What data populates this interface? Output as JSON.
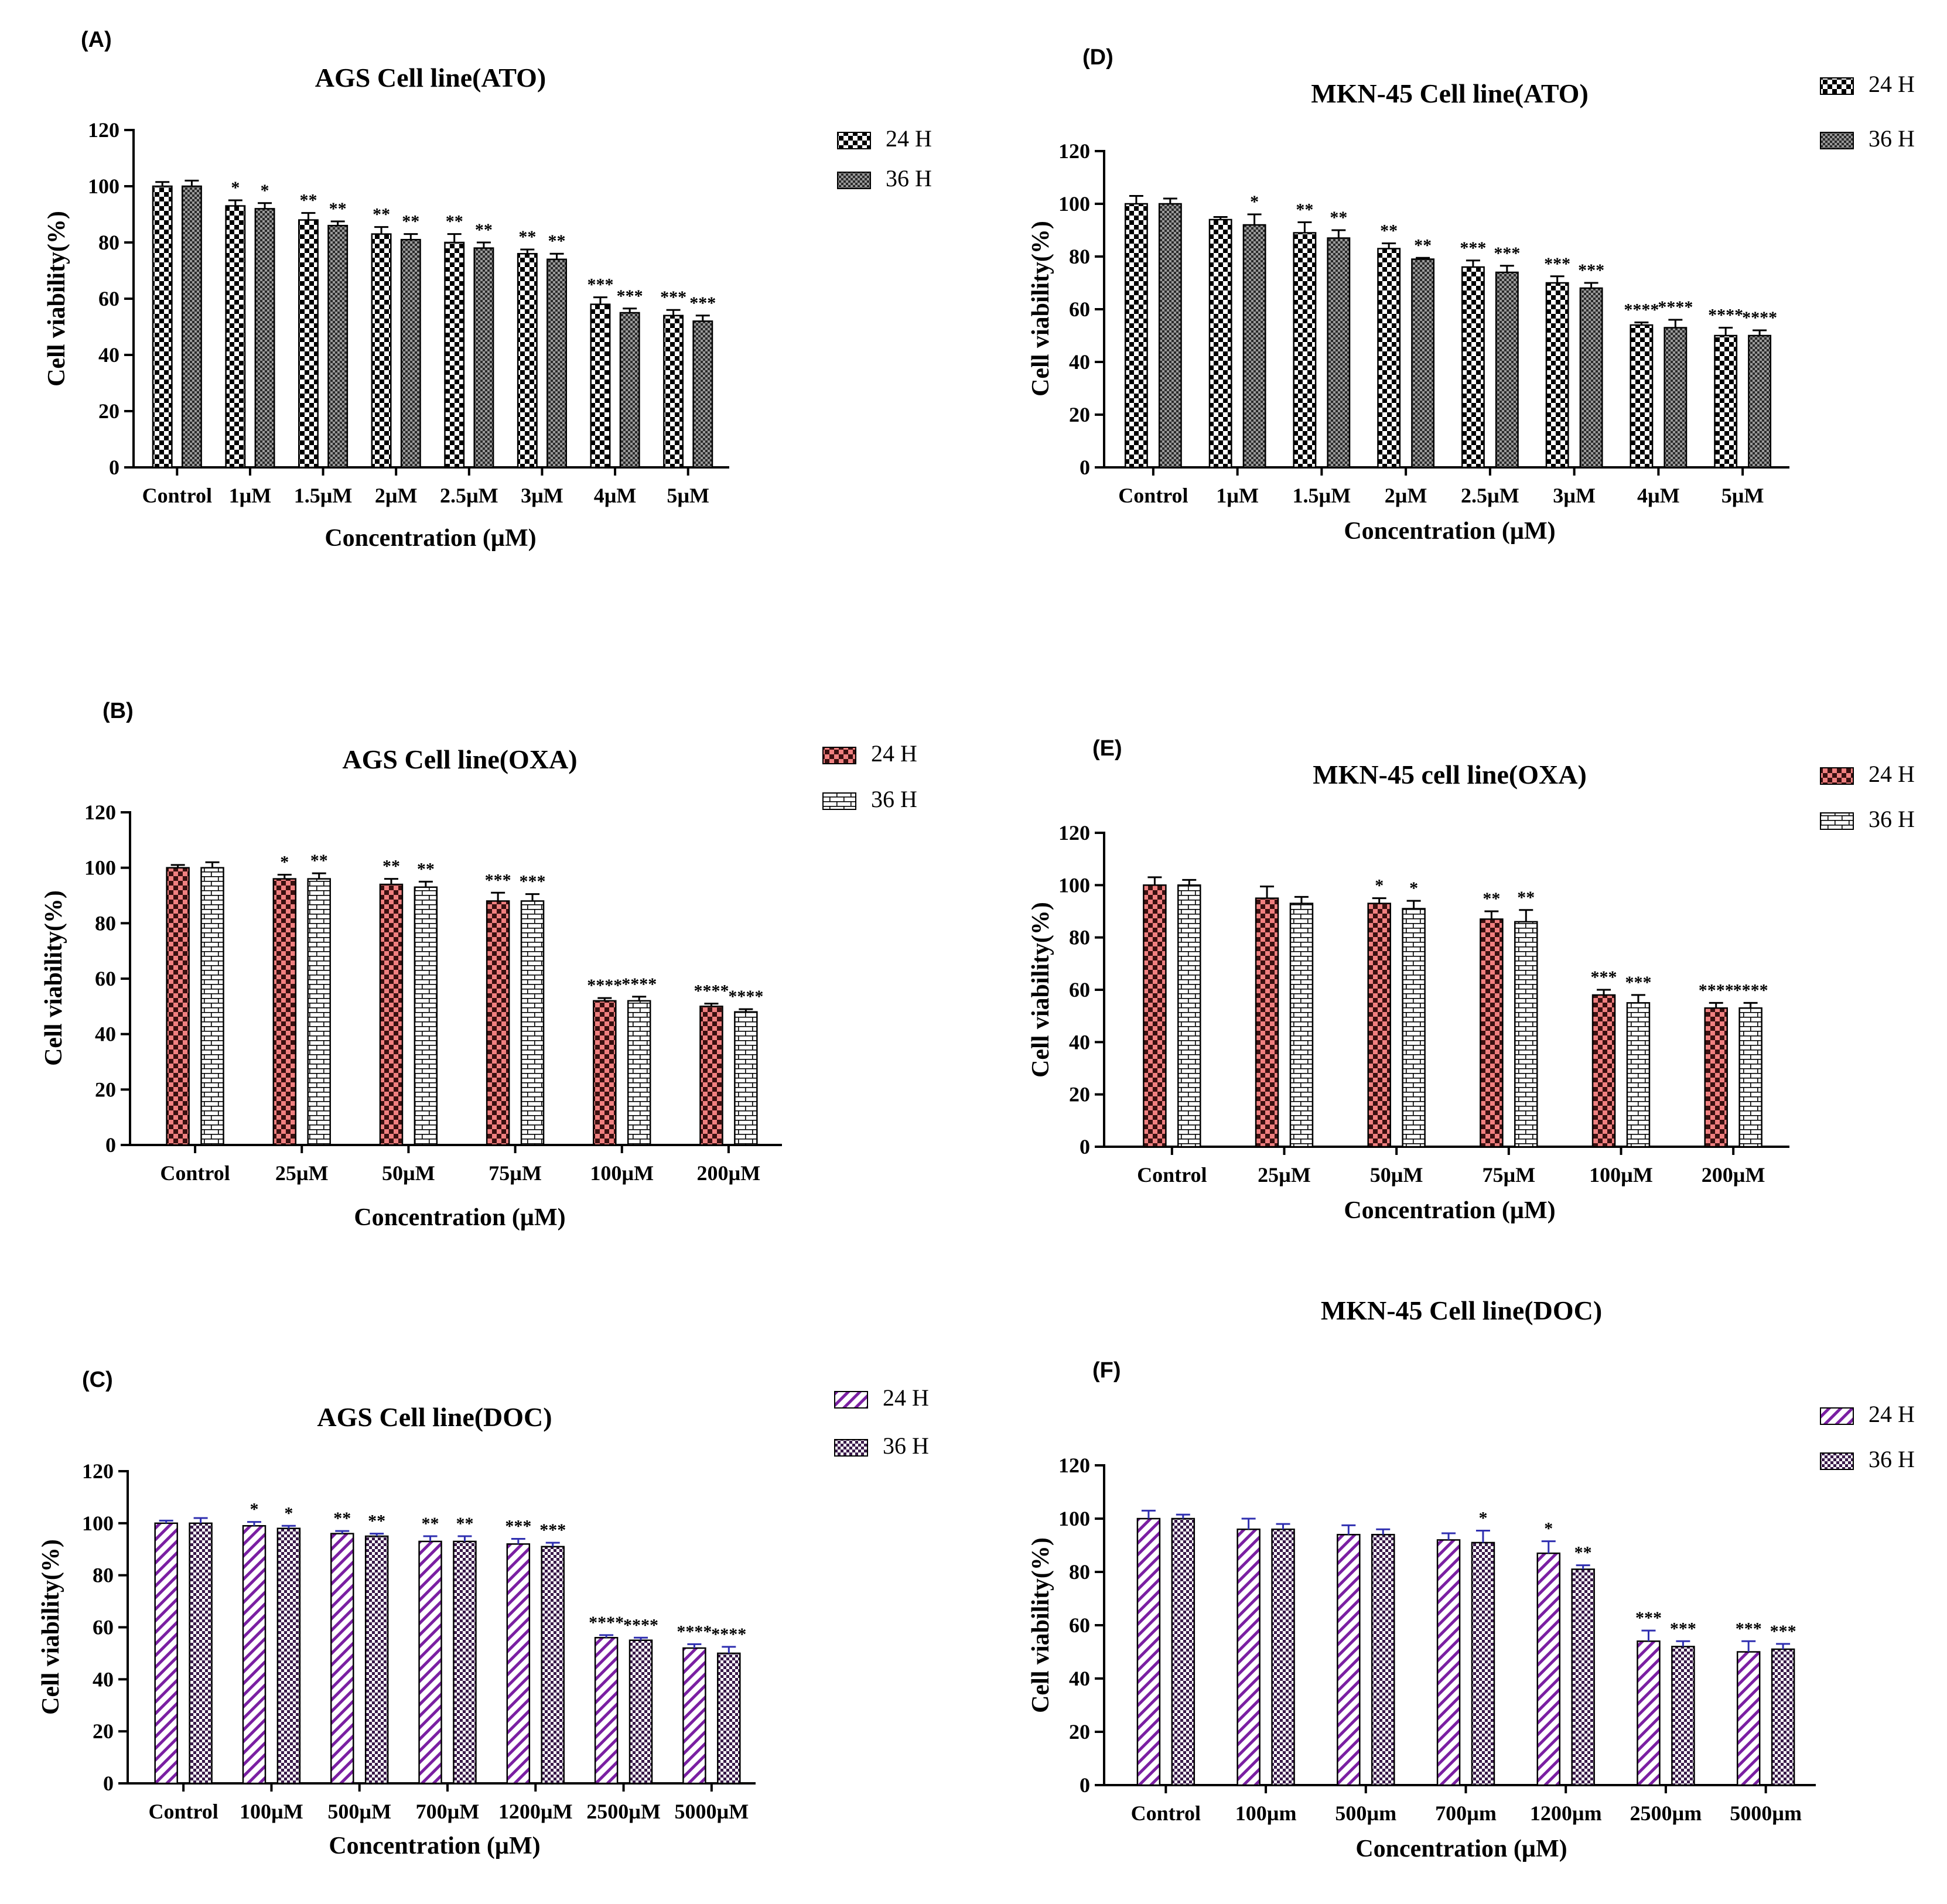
{
  "figure": {
    "colors": {
      "red": "#f08080",
      "purple": "#7a1fa2",
      "error_bar_purple": "#2f2fb0",
      "gray": "#555555",
      "black": "#000000"
    }
  },
  "chart_data": [
    {
      "panel": "(A)",
      "type": "bar",
      "title": "AGS Cell line(ATO)",
      "xlabel": "Concentration  (µM)",
      "ylabel": "Cell viability(%)",
      "ylim": [
        0,
        120
      ],
      "yticks": [
        "0",
        "20",
        "40",
        "60",
        "80",
        "100",
        "120"
      ],
      "categories": [
        "Control",
        "1µM",
        "1.5µM",
        "2µM",
        "2.5µM",
        "3µM",
        "4µM",
        "5µM"
      ],
      "series": [
        {
          "name": "24 H",
          "pattern": "checker",
          "values": [
            100,
            93,
            88,
            83,
            80,
            76,
            58,
            54
          ],
          "errors": [
            1.5,
            2,
            2.5,
            2.5,
            3,
            1.5,
            2.5,
            2
          ],
          "significance": [
            "",
            "*",
            "**",
            "**",
            "**",
            "**",
            "***",
            "***"
          ]
        },
        {
          "name": "36 H",
          "pattern": "darkgrid",
          "values": [
            100,
            92,
            86,
            81,
            78,
            74,
            55,
            52
          ],
          "errors": [
            2,
            2,
            1.5,
            2,
            2,
            2,
            1.5,
            2
          ],
          "significance": [
            "",
            "*",
            "**",
            "**",
            "**",
            "**",
            "***",
            "***"
          ]
        }
      ]
    },
    {
      "panel": "(B)",
      "type": "bar",
      "title": "AGS Cell line(OXA)",
      "xlabel": "Concentration  (µM)",
      "ylabel": "Cell viability(%)",
      "ylim": [
        0,
        120
      ],
      "yticks": [
        "0",
        "20",
        "40",
        "60",
        "80",
        "100",
        "120"
      ],
      "categories": [
        "Control",
        "25µM",
        "50µM",
        "75µM",
        "100µM",
        "200µM"
      ],
      "series": [
        {
          "name": "24 H",
          "pattern": "redchecker",
          "values": [
            100,
            96,
            94,
            88,
            52,
            50
          ],
          "errors": [
            1,
            1.5,
            2,
            3,
            1,
            1
          ],
          "significance": [
            "",
            "*",
            "**",
            "***",
            "****",
            "****"
          ]
        },
        {
          "name": "36 H",
          "pattern": "brick",
          "values": [
            100,
            96,
            93,
            88,
            52,
            48
          ],
          "errors": [
            2,
            2,
            2,
            2.5,
            1.5,
            1
          ],
          "significance": [
            "",
            "**",
            "**",
            "***",
            "****",
            "****"
          ]
        }
      ]
    },
    {
      "panel": "(C)",
      "type": "bar",
      "title": "AGS Cell line(DOC)",
      "xlabel": "Concentration  (µM)",
      "ylabel": "Cell viability(%)",
      "ylim": [
        0,
        120
      ],
      "yticks": [
        "0",
        "20",
        "40",
        "60",
        "80",
        "100",
        "120"
      ],
      "categories": [
        "Control",
        "100µM",
        "500µM",
        "700µM",
        "1200µM",
        "2500µM",
        "5000µM"
      ],
      "series": [
        {
          "name": "24 H",
          "pattern": "diag",
          "values": [
            100,
            99,
            96,
            93,
            92,
            56,
            52
          ],
          "errors": [
            1,
            1.5,
            1,
            2,
            2,
            1,
            1.5
          ],
          "significance": [
            "",
            "*",
            "**",
            "**",
            "***",
            "****",
            "****"
          ]
        },
        {
          "name": "36 H",
          "pattern": "purplecheck",
          "values": [
            100,
            98,
            95,
            93,
            91,
            55,
            50
          ],
          "errors": [
            2,
            1,
            1,
            2,
            1.5,
            1,
            2.5
          ],
          "significance": [
            "",
            "*",
            "**",
            "**",
            "***",
            "****",
            "****"
          ]
        }
      ]
    },
    {
      "panel": "(D)",
      "type": "bar",
      "title": "MKN-45 Cell line(ATO)",
      "xlabel": "Concentration  (µM)",
      "ylabel": "Cell viability(%)",
      "ylim": [
        0,
        120
      ],
      "yticks": [
        "0",
        "20",
        "40",
        "60",
        "80",
        "100",
        "120"
      ],
      "categories": [
        "Control",
        "1µM",
        "1.5µM",
        "2µM",
        "2.5µM",
        "3µM",
        "4µM",
        "5µM"
      ],
      "series": [
        {
          "name": "24 H",
          "pattern": "checker",
          "values": [
            100,
            94,
            89,
            83,
            76,
            70,
            54,
            50
          ],
          "errors": [
            3,
            1,
            4,
            2,
            2.5,
            2.5,
            1,
            3
          ],
          "significance": [
            "",
            "",
            "**",
            "**",
            "***",
            "***",
            "****",
            "****"
          ]
        },
        {
          "name": "36 H",
          "pattern": "darkgrid",
          "values": [
            100,
            92,
            87,
            79,
            74,
            68,
            53,
            50
          ],
          "errors": [
            2,
            4,
            3,
            0.5,
            2.5,
            2,
            3,
            2
          ],
          "significance": [
            "",
            "*",
            "**",
            "**",
            "***",
            "***",
            "****",
            "****"
          ]
        }
      ]
    },
    {
      "panel": "(E)",
      "type": "bar",
      "title": "MKN-45 cell line(OXA)",
      "xlabel": "Concentration  (µM)",
      "ylabel": "Cell viability(%)",
      "ylim": [
        0,
        120
      ],
      "yticks": [
        "0",
        "20",
        "40",
        "60",
        "80",
        "100",
        "120"
      ],
      "categories": [
        "Control",
        "25µM",
        "50µM",
        "75µM",
        "100µM",
        "200µM"
      ],
      "series": [
        {
          "name": "24 H",
          "pattern": "redchecker",
          "values": [
            100,
            95,
            93,
            87,
            58,
            53
          ],
          "errors": [
            3,
            4.5,
            2,
            3,
            2,
            2
          ],
          "significance": [
            "",
            "",
            "*",
            "**",
            "***",
            "****"
          ]
        },
        {
          "name": "36 H",
          "pattern": "brick",
          "values": [
            100,
            93,
            91,
            86,
            55,
            53
          ],
          "errors": [
            2,
            2.5,
            3,
            4.5,
            3,
            2
          ],
          "significance": [
            "",
            "",
            "*",
            "**",
            "***",
            "****"
          ]
        }
      ]
    },
    {
      "panel": "(F)",
      "type": "bar",
      "title": "MKN-45 Cell line(DOC)",
      "xlabel": "Concentration  (µM)",
      "ylabel": "Cell viability(%)",
      "ylim": [
        0,
        120
      ],
      "yticks": [
        "0",
        "20",
        "40",
        "60",
        "80",
        "100",
        "120"
      ],
      "categories": [
        "Control",
        "100µm",
        "500µm",
        "700µm",
        "1200µm",
        "2500µm",
        "5000µm"
      ],
      "series": [
        {
          "name": "24 H",
          "pattern": "diag",
          "values": [
            100,
            96,
            94,
            92,
            87,
            54,
            50
          ],
          "errors": [
            3,
            4,
            3.5,
            2.5,
            4.5,
            4,
            4
          ],
          "significance": [
            "",
            "",
            "",
            "",
            "*",
            "***",
            "***"
          ]
        },
        {
          "name": "36 H",
          "pattern": "purplecheck",
          "values": [
            100,
            96,
            94,
            91,
            81,
            52,
            51
          ],
          "errors": [
            1.5,
            2,
            2,
            4.5,
            1.5,
            2,
            2
          ],
          "significance": [
            "",
            "",
            "",
            "*",
            "**",
            "***",
            "***"
          ]
        }
      ]
    }
  ]
}
